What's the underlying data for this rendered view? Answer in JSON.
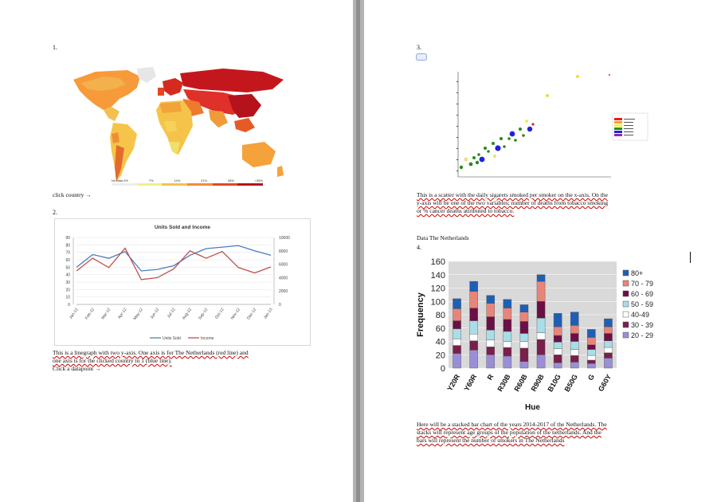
{
  "left": {
    "num1": "1.",
    "map_legend": [
      "No data 0%",
      "7%",
      "14%",
      "21%",
      "28%",
      ">35%"
    ],
    "click_country": "click country →",
    "num2": "2.",
    "desc1": "This is a linegraph with two y-axis. One axis is for The Netherlands (red line) and",
    "desc2": "one axis is for the clicked country in 1 (blue line).",
    "desc3": "Click a datapoint →"
  },
  "right": {
    "num3": "3.",
    "desc1": "This is a scatter with the daily sigarets smoked per smoker on the x-axis. On the",
    "desc2": "y-axis will be one of the two variables; number of deaths from tobacco smoking",
    "desc3": "or % cancer deaths attributed to tobacco.",
    "data_label": "Data The Netherlands",
    "num4": "4.",
    "bottom1": "Here will be a stacked bar chart of the years 2014-2017 of the Netherlands. The",
    "bottom2": "stacks will represent age groups of the population of the netherlands. And the",
    "bottom3": "bars will represent the number of smokers in The Netherlands"
  },
  "colors": {
    "blue_series": "#4a7ebb",
    "red_series": "#c0504d"
  },
  "chart_data": [
    {
      "type": "line",
      "title": "Units Sold and Income",
      "categories": [
        "Jan-12",
        "Feb-12",
        "Mar-12",
        "Apr-12",
        "May-12",
        "Jun-12",
        "Jul-12",
        "Aug-12",
        "Sep-12",
        "Oct-12",
        "Nov-12",
        "Dec-12",
        "Jan-13"
      ],
      "series": [
        {
          "name": "Units Sold",
          "axis": "left",
          "values": [
            50,
            67,
            62,
            71,
            45,
            47,
            52,
            66,
            75,
            77,
            79,
            72,
            66
          ]
        },
        {
          "name": "Income",
          "axis": "right",
          "values": [
            5000,
            6900,
            5500,
            8400,
            3700,
            4000,
            5300,
            8000,
            6900,
            7900,
            5500,
            4700,
            5600
          ]
        }
      ],
      "ylim_left": [
        0,
        90
      ],
      "yticks_left": [
        0,
        10,
        20,
        30,
        40,
        50,
        60,
        70,
        80,
        90
      ],
      "ylim_right": [
        0,
        10000
      ],
      "yticks_right": [
        0,
        2000,
        4000,
        6000,
        8000,
        10000
      ],
      "legend": "bottom",
      "grid": true
    },
    {
      "type": "bar",
      "stacked": true,
      "xlabel": "Hue",
      "ylabel": "Frequency",
      "categories": [
        "Y20R",
        "Y60R",
        "R",
        "R30B",
        "R60B",
        "R90B",
        "B10G",
        "B50G",
        "G",
        "G60Y"
      ],
      "ylim": [
        0,
        160
      ],
      "yticks": [
        0,
        20,
        40,
        60,
        80,
        100,
        120,
        140,
        160
      ],
      "legend": "right",
      "series": [
        {
          "name": "20 - 29",
          "color": "#9a8fd6",
          "values": [
            22,
            27,
            20,
            18,
            10,
            20,
            8,
            9,
            7,
            15
          ]
        },
        {
          "name": "30 - 39",
          "color": "#7a1f4a",
          "values": [
            12,
            14,
            12,
            13,
            20,
            23,
            12,
            10,
            5,
            8
          ]
        },
        {
          "name": "40-49",
          "color": "#ffffff",
          "values": [
            10,
            10,
            10,
            9,
            10,
            10,
            9,
            9,
            7,
            8
          ]
        },
        {
          "name": "50 - 59",
          "color": "#a9dde8",
          "values": [
            15,
            20,
            15,
            15,
            12,
            22,
            10,
            12,
            9,
            10
          ]
        },
        {
          "name": "60 - 69",
          "color": "#6b1046",
          "values": [
            12,
            19,
            20,
            18,
            18,
            25,
            10,
            12,
            7,
            11
          ]
        },
        {
          "name": "70 - 79",
          "color": "#e8857a",
          "values": [
            18,
            25,
            20,
            17,
            14,
            30,
            13,
            12,
            11,
            10
          ]
        },
        {
          "name": "80+",
          "color": "#1e5fb4",
          "values": [
            15,
            15,
            12,
            13,
            11,
            10,
            20,
            20,
            12,
            12
          ]
        }
      ]
    }
  ]
}
